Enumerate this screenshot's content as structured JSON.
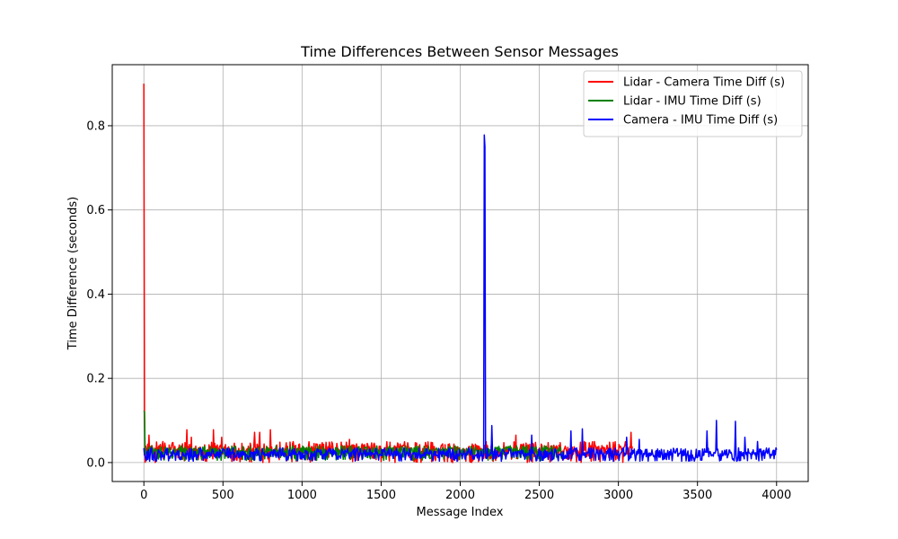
{
  "chart_data": {
    "type": "line",
    "title": "Time Differences Between Sensor Messages",
    "xlabel": "Message Index",
    "ylabel": "Time Difference (seconds)",
    "xlim": [
      -200,
      4200
    ],
    "ylim": [
      -0.045,
      0.945
    ],
    "xticks": [
      0,
      500,
      1000,
      1500,
      2000,
      2500,
      3000,
      3500,
      4000
    ],
    "xtick_labels": [
      "0",
      "500",
      "1000",
      "1500",
      "2000",
      "2500",
      "3000",
      "3500",
      "4000"
    ],
    "yticks": [
      0.0,
      0.2,
      0.4,
      0.6,
      0.8
    ],
    "ytick_labels": [
      "0.0",
      "0.2",
      "0.4",
      "0.6",
      "0.8"
    ],
    "grid": true,
    "legend_position": "top-right",
    "series": [
      {
        "name": "Lidar - Camera Time Diff (s)",
        "color": "#ff0000",
        "x_range": [
          0,
          3090
        ],
        "baseline": 0.02,
        "noise_band": [
          0.0,
          0.05
        ],
        "spikes": [
          [
            0,
            0.9
          ],
          [
            5,
            0.12
          ],
          [
            30,
            0.065
          ],
          [
            120,
            0.05
          ],
          [
            270,
            0.078
          ],
          [
            300,
            0.06
          ],
          [
            440,
            0.078
          ],
          [
            490,
            0.06
          ],
          [
            700,
            0.072
          ],
          [
            730,
            0.072
          ],
          [
            800,
            0.078
          ],
          [
            1300,
            0.055
          ],
          [
            2350,
            0.065
          ],
          [
            3080,
            0.072
          ]
        ]
      },
      {
        "name": "Lidar - IMU Time Diff (s)",
        "color": "#008000",
        "x_range": [
          0,
          2650
        ],
        "baseline": 0.02,
        "noise_band": [
          0.005,
          0.04
        ],
        "spikes": [
          [
            0,
            0.123
          ],
          [
            3,
            0.12
          ]
        ]
      },
      {
        "name": "Camera - IMU Time Diff (s)",
        "color": "#0000ff",
        "x_range": [
          0,
          4000
        ],
        "baseline": 0.015,
        "noise_band": [
          0.003,
          0.035
        ],
        "spikes": [
          [
            2150,
            0.778
          ],
          [
            2155,
            0.75
          ],
          [
            2200,
            0.088
          ],
          [
            2450,
            0.065
          ],
          [
            2700,
            0.075
          ],
          [
            2770,
            0.08
          ],
          [
            3050,
            0.06
          ],
          [
            3130,
            0.055
          ],
          [
            3560,
            0.075
          ],
          [
            3620,
            0.1
          ],
          [
            3740,
            0.098
          ],
          [
            3800,
            0.06
          ],
          [
            3880,
            0.05
          ],
          [
            4000,
            0.03
          ]
        ]
      }
    ]
  }
}
